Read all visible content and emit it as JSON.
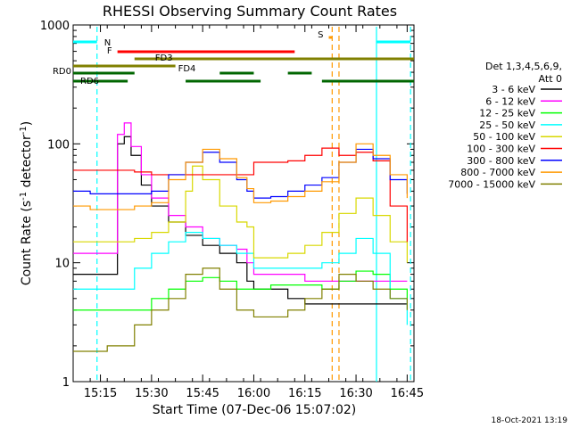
{
  "chart_data": {
    "type": "line",
    "title": "RHESSI Observing Summary Count Rates",
    "xlabel": "Start Time (07-Dec-06 15:07:02)",
    "ylabel": "Count Rate (s-1 detector-1)",
    "ylabel_parts": [
      "Count Rate (s",
      "-1",
      " detector",
      "-1",
      ")"
    ],
    "y_scale": "log",
    "ylim": [
      1,
      1000
    ],
    "xlim": [
      "15:07",
      "16:47"
    ],
    "x_ticks": [
      "15:15",
      "15:30",
      "15:45",
      "16:00",
      "16:15",
      "16:30",
      "16:45"
    ],
    "y_ticks": [
      "1",
      "10",
      "100",
      "1000"
    ],
    "legend_header": [
      "Det 1,3,4,5,6,9,",
      "Att 0"
    ],
    "legend_position": "right",
    "footer_date": "18-Oct-2021 13:19",
    "series": [
      {
        "name": "3 - 6 keV",
        "color": "#000000",
        "x": [
          "15:07",
          "15:12",
          "15:17",
          "15:20",
          "15:22",
          "15:24",
          "15:27",
          "15:30",
          "15:35",
          "15:40",
          "15:45",
          "15:50",
          "15:55",
          "15:58",
          "16:00",
          "16:05",
          "16:10",
          "16:15",
          "16:20",
          "16:25",
          "16:30",
          "16:35",
          "16:40",
          "16:45"
        ],
        "y": [
          8,
          8,
          8,
          100,
          115,
          80,
          45,
          30,
          22,
          17,
          14,
          12,
          10,
          7,
          6,
          6,
          5,
          4.5,
          4.5,
          4.5,
          4.5,
          4.5,
          4.5,
          4.5
        ]
      },
      {
        "name": "6 - 12 keV",
        "color": "#ff00ff",
        "x": [
          "15:07",
          "15:12",
          "15:17",
          "15:20",
          "15:22",
          "15:24",
          "15:27",
          "15:30",
          "15:35",
          "15:40",
          "15:45",
          "15:50",
          "15:55",
          "15:58",
          "16:00",
          "16:05",
          "16:10",
          "16:15",
          "16:20",
          "16:25",
          "16:30",
          "16:35",
          "16:40",
          "16:45"
        ],
        "y": [
          12,
          12,
          12,
          120,
          150,
          95,
          55,
          35,
          25,
          20,
          16,
          14,
          13,
          10,
          8,
          8,
          8,
          7,
          7,
          7,
          7,
          7,
          7,
          7
        ]
      },
      {
        "name": "12 - 25 keV",
        "color": "#00ff00",
        "x": [
          "15:07",
          "15:12",
          "15:17",
          "15:20",
          "15:25",
          "15:30",
          "15:35",
          "15:40",
          "15:45",
          "15:50",
          "15:55",
          "16:00",
          "16:05",
          "16:10",
          "16:15",
          "16:20",
          "16:25",
          "16:30",
          "16:35",
          "16:40",
          "16:45"
        ],
        "y": [
          4,
          4,
          4,
          4,
          4,
          5,
          6,
          7,
          7.5,
          7,
          6,
          6,
          6.5,
          6.5,
          6.5,
          6,
          7,
          8.5,
          8,
          6,
          5
        ]
      },
      {
        "name": "25 - 50 keV",
        "color": "#00ffff",
        "x": [
          "15:07",
          "15:12",
          "15:17",
          "15:20",
          "15:25",
          "15:30",
          "15:35",
          "15:40",
          "15:45",
          "15:50",
          "15:55",
          "16:00",
          "16:05",
          "16:10",
          "16:15",
          "16:20",
          "16:25",
          "16:30",
          "16:35",
          "16:40",
          "16:45"
        ],
        "y": [
          6,
          6,
          6,
          6,
          9,
          12,
          15,
          18,
          16,
          14,
          12,
          9,
          9,
          9,
          9,
          10,
          12,
          16,
          12,
          5,
          3
        ]
      },
      {
        "name": "50 - 100 keV",
        "color": "#d8d800",
        "x": [
          "15:07",
          "15:12",
          "15:17",
          "15:20",
          "15:25",
          "15:30",
          "15:35",
          "15:40",
          "15:42",
          "15:45",
          "15:50",
          "15:55",
          "15:58",
          "16:00",
          "16:05",
          "16:10",
          "16:15",
          "16:20",
          "16:25",
          "16:30",
          "16:35",
          "16:40",
          "16:45"
        ],
        "y": [
          15,
          15,
          15,
          15,
          16,
          18,
          22,
          40,
          65,
          50,
          30,
          22,
          20,
          11,
          11,
          12,
          14,
          18,
          26,
          35,
          25,
          15,
          10
        ]
      },
      {
        "name": "100 - 300 keV",
        "color": "#ff0000",
        "x": [
          "15:07",
          "15:12",
          "15:17",
          "15:20",
          "15:25",
          "15:30",
          "15:35",
          "15:40",
          "15:45",
          "15:50",
          "15:55",
          "15:58",
          "16:00",
          "16:05",
          "16:10",
          "16:15",
          "16:20",
          "16:25",
          "16:30",
          "16:35",
          "16:40",
          "16:45"
        ],
        "y": [
          60,
          60,
          60,
          60,
          58,
          55,
          55,
          55,
          55,
          55,
          55,
          55,
          70,
          70,
          72,
          80,
          92,
          80,
          85,
          72,
          30,
          15
        ]
      },
      {
        "name": "300 - 800 keV",
        "color": "#0000ff",
        "x": [
          "15:07",
          "15:12",
          "15:17",
          "15:20",
          "15:25",
          "15:30",
          "15:35",
          "15:40",
          "15:45",
          "15:50",
          "15:55",
          "15:58",
          "16:00",
          "16:05",
          "16:10",
          "16:15",
          "16:20",
          "16:25",
          "16:30",
          "16:35",
          "16:40",
          "16:45"
        ],
        "y": [
          40,
          38,
          38,
          38,
          38,
          40,
          55,
          70,
          85,
          70,
          50,
          40,
          35,
          36,
          40,
          45,
          52,
          70,
          90,
          75,
          50,
          38
        ]
      },
      {
        "name": "800 - 7000 keV",
        "color": "#ff9900",
        "x": [
          "15:07",
          "15:12",
          "15:17",
          "15:20",
          "15:25",
          "15:30",
          "15:35",
          "15:40",
          "15:45",
          "15:50",
          "15:55",
          "15:58",
          "16:00",
          "16:05",
          "16:10",
          "16:15",
          "16:20",
          "16:25",
          "16:30",
          "16:35",
          "16:40",
          "16:45"
        ],
        "y": [
          30,
          28,
          28,
          28,
          30,
          32,
          50,
          70,
          90,
          75,
          52,
          42,
          32,
          33,
          36,
          40,
          48,
          70,
          100,
          80,
          55,
          35
        ]
      },
      {
        "name": "7000 - 15000 keV",
        "color": "#808000",
        "x": [
          "15:07",
          "15:12",
          "15:17",
          "15:20",
          "15:25",
          "15:30",
          "15:35",
          "15:40",
          "15:45",
          "15:50",
          "15:55",
          "16:00",
          "16:05",
          "16:10",
          "16:15",
          "16:20",
          "16:25",
          "16:30",
          "16:35",
          "16:40",
          "16:45"
        ],
        "y": [
          1.8,
          1.8,
          2,
          2,
          3,
          4,
          5,
          8,
          9,
          6,
          4,
          3.5,
          3.5,
          4,
          5,
          6,
          8,
          7,
          6,
          5,
          4
        ]
      }
    ],
    "flag_bars": [
      {
        "label": "N",
        "color": "#00ffff",
        "segments": [
          [
            "15:07",
            "15:14"
          ],
          [
            "16:36",
            "16:46"
          ]
        ],
        "y": 47
      },
      {
        "label": "F",
        "color": "#ff0000",
        "segments": [
          [
            "15:20",
            "16:12"
          ]
        ],
        "y": 58
      },
      {
        "label": "FD3",
        "color": "#808000",
        "segments": [
          [
            "15:25",
            "16:47"
          ]
        ],
        "y": 66
      },
      {
        "label": "FD4",
        "color": "#808000",
        "segments": [
          [
            "15:07",
            "15:37"
          ]
        ],
        "y": 74
      },
      {
        "label": "RD0",
        "color": "#006600",
        "segments": [
          [
            "15:07",
            "15:25"
          ],
          [
            "15:50",
            "16:00"
          ],
          [
            "16:10",
            "16:17"
          ]
        ],
        "y": 82
      },
      {
        "label": "RD6",
        "color": "#006600",
        "segments": [
          [
            "15:07",
            "15:23"
          ],
          [
            "15:40",
            "16:02"
          ],
          [
            "16:20",
            "16:47"
          ]
        ],
        "y": 91
      },
      {
        "label": "S",
        "color": "#ff9900",
        "segments": [
          [
            "16:22",
            "16:23"
          ]
        ],
        "y": 42
      }
    ],
    "vertical_markers": [
      {
        "time": "15:14",
        "color": "#00ffff",
        "style": "dashed"
      },
      {
        "time": "16:23",
        "color": "#ff9900",
        "style": "dashed"
      },
      {
        "time": "16:25",
        "color": "#ff9900",
        "style": "dashed"
      },
      {
        "time": "16:36",
        "color": "#00ffff",
        "style": "solid"
      },
      {
        "time": "16:46",
        "color": "#00ffff",
        "style": "dashed"
      }
    ]
  }
}
